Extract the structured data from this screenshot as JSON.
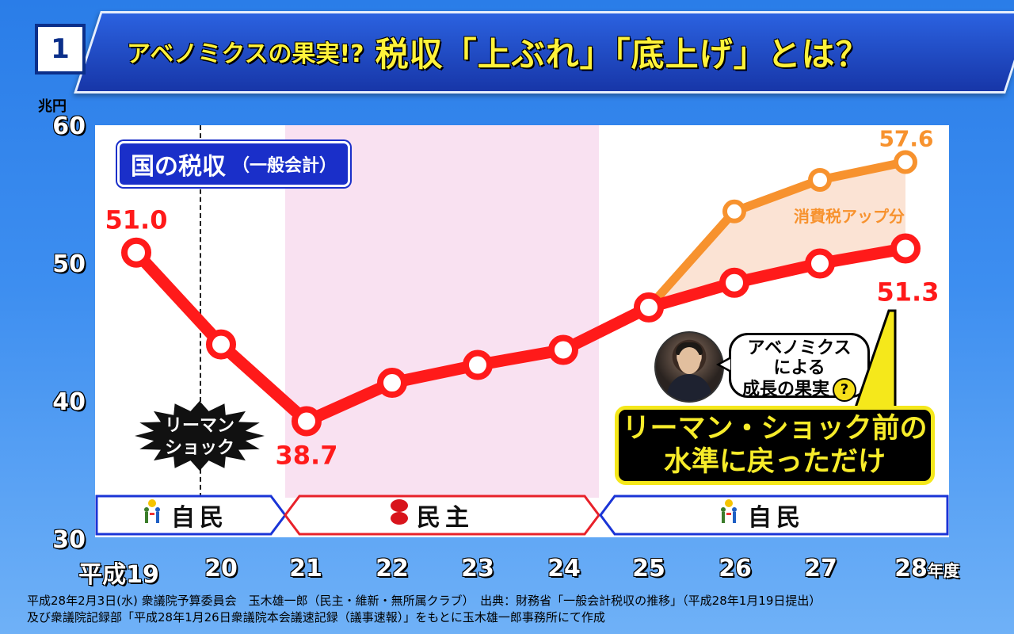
{
  "header": {
    "slide_number": "1",
    "title_part1": "アベノミクスの果実!?",
    "title_part2": "税収「上ぶれ」「底上げ」とは？"
  },
  "chart_data": {
    "type": "line",
    "title": "国の税収",
    "subtitle": "（一般会計）",
    "ylabel": "兆円",
    "ylim": [
      30,
      60
    ],
    "y_ticks": [
      "30",
      "40",
      "50",
      "60"
    ],
    "x_labels": [
      "平成19",
      "20",
      "21",
      "22",
      "23",
      "24",
      "25",
      "26",
      "27",
      "28"
    ],
    "x_suffix": "年度",
    "series": [
      {
        "x": [
          "19",
          "20",
          "21",
          "22",
          "23",
          "24",
          "25",
          "26",
          "27",
          "28"
        ],
        "values": [
          51.0,
          44.3,
          38.7,
          41.5,
          42.8,
          43.9,
          47.0,
          48.8,
          50.2,
          51.3
        ],
        "color": "#ff1a1a"
      },
      {
        "x": [
          "25",
          "26",
          "27",
          "28"
        ],
        "values": [
          47.0,
          54.0,
          56.3,
          57.6
        ],
        "color": "#f7922e"
      }
    ],
    "data_labels": {
      "first": "51.0",
      "min": "38.7",
      "last_red": "51.3",
      "last_orange": "57.6"
    },
    "shaded_area_label": "消費税アップ分",
    "lehman_marker": "リーマン\nショック",
    "parties": [
      {
        "label": "自民",
        "from_index": 0,
        "to_index": 2,
        "color": "#1a34d6"
      },
      {
        "label": "民主",
        "from_index": 2,
        "to_index": 6,
        "color": "#e8212a"
      },
      {
        "label": "自民",
        "from_index": 6,
        "to_index": 10,
        "color": "#1a34d6"
      }
    ]
  },
  "callout": {
    "speech": [
      "アベノミクス",
      "による",
      "成長の果実"
    ],
    "speech_mark": "?",
    "box_line1": "リーマン・ショック前の",
    "box_line2": "水準に戻っただけ"
  },
  "footer": {
    "line1": "平成28年2月3日(水) 衆議院予算委員会　玉木雄一郎（民主・維新・無所属クラブ）　出典：財務省「一般会計税収の推移」（平成28年1月19日提出）",
    "line2": "及び衆議院記録部「平成28年1月26日衆議院本会議速記録（議事速報）」をもとに玉木雄一郎事務所にて作成"
  }
}
